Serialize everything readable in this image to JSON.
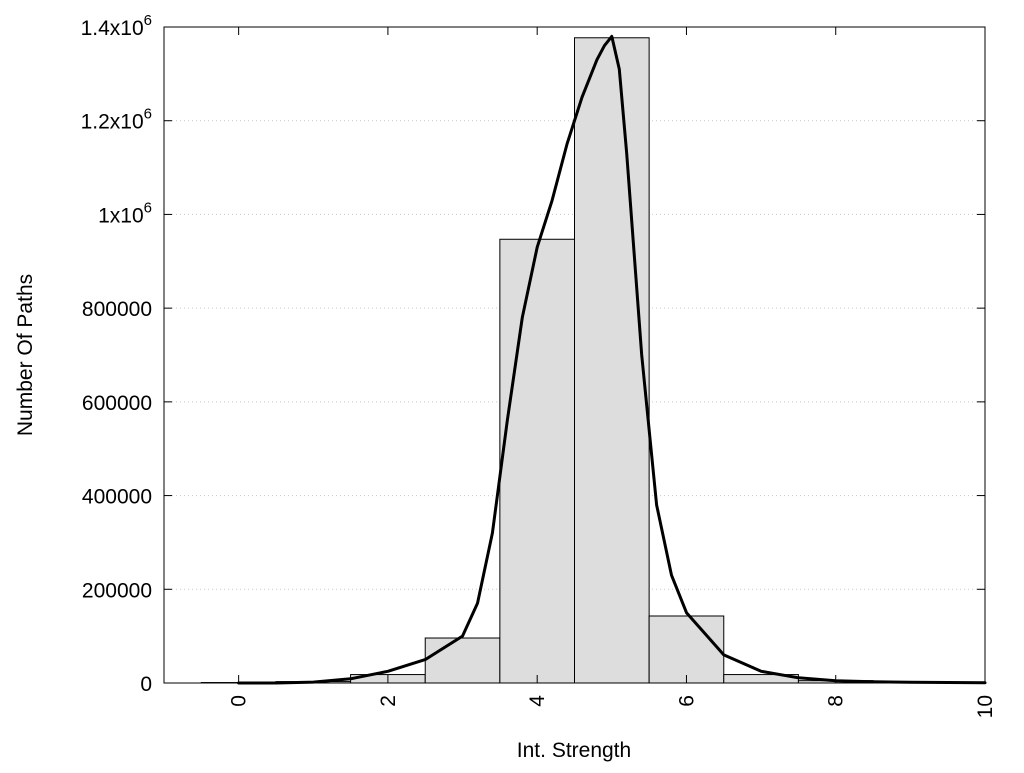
{
  "chart_data": {
    "type": "bar",
    "title": "",
    "xlabel": "Int. Strength",
    "ylabel": "Number Of Paths",
    "xlim": [
      -1,
      10
    ],
    "ylim": [
      0,
      1400000
    ],
    "x_ticks": [
      {
        "value": 0,
        "label": "0"
      },
      {
        "value": 2,
        "label": "2"
      },
      {
        "value": 4,
        "label": "4"
      },
      {
        "value": 6,
        "label": "6"
      },
      {
        "value": 8,
        "label": "8"
      },
      {
        "value": 10,
        "label": "10"
      }
    ],
    "y_ticks": [
      {
        "value": 0,
        "label": "0"
      },
      {
        "value": 200000,
        "label": "200000"
      },
      {
        "value": 400000,
        "label": "400000"
      },
      {
        "value": 600000,
        "label": "600000"
      },
      {
        "value": 800000,
        "label": "800000"
      },
      {
        "value": 1000000,
        "base": "1x10",
        "exp": "6"
      },
      {
        "value": 1200000,
        "base": "1.2x10",
        "exp": "6"
      },
      {
        "value": 1400000,
        "base": "1.4x10",
        "exp": "6"
      }
    ],
    "grid": true,
    "bar_width": 1,
    "bar_fill": "#dddddd",
    "line_color": "#000000",
    "histogram": {
      "x": [
        0,
        1,
        2,
        3,
        4,
        5,
        6,
        7,
        8,
        9
      ],
      "values": [
        1000,
        3000,
        18000,
        96000,
        947000,
        1377000,
        143000,
        18000,
        5000,
        1500
      ]
    },
    "fit_curve": {
      "x": [
        0,
        0.5,
        1,
        1.5,
        2,
        2.5,
        3,
        3.2,
        3.4,
        3.6,
        3.8,
        4,
        4.2,
        4.4,
        4.6,
        4.8,
        4.9,
        5,
        5.1,
        5.2,
        5.4,
        5.6,
        5.8,
        6,
        6.5,
        7,
        7.5,
        8,
        8.5,
        9,
        10
      ],
      "y": [
        0,
        0,
        2000,
        9000,
        25000,
        50000,
        100000,
        170000,
        320000,
        560000,
        780000,
        930000,
        1030000,
        1150000,
        1250000,
        1330000,
        1360000,
        1380000,
        1310000,
        1130000,
        700000,
        380000,
        230000,
        150000,
        60000,
        25000,
        11000,
        5000,
        2500,
        1500,
        500
      ]
    }
  }
}
